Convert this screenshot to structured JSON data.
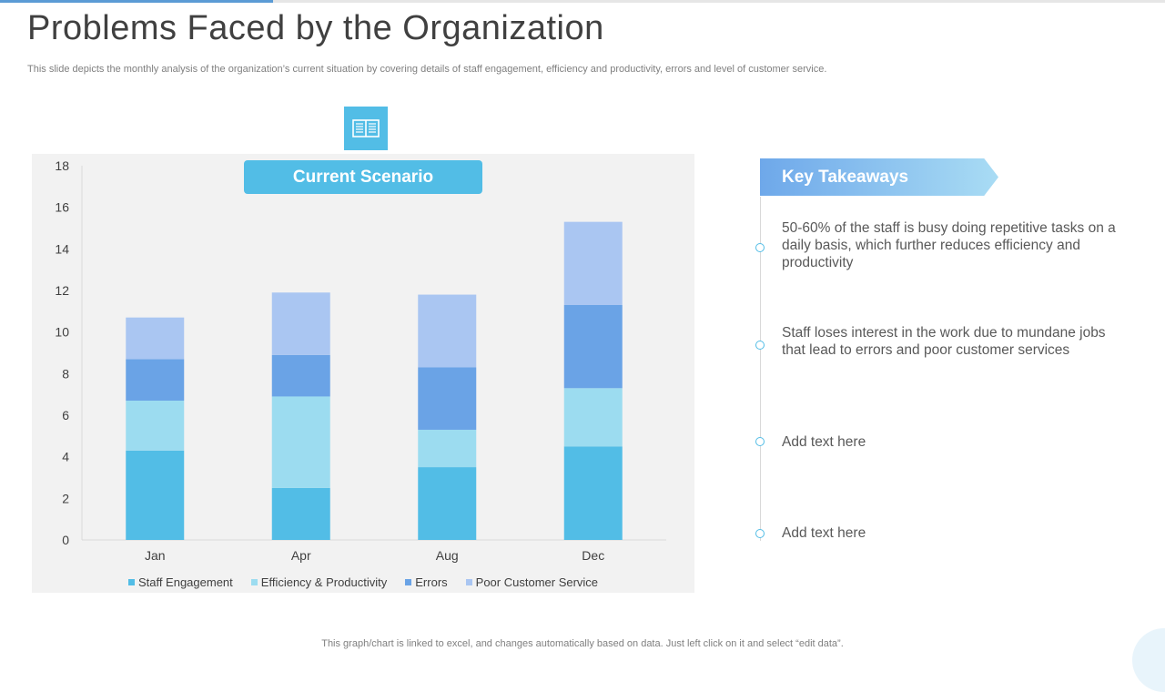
{
  "slide": {
    "title": "Problems Faced by the Organization",
    "subtitle": "This slide depicts the monthly analysis of the organization’s current situation by covering details of staff engagement, efficiency and productivity,  errors and level of customer service.",
    "footer_note": "This graph/chart is linked to excel,  and changes automatically based on data. Just left click on it and select “edit data”.",
    "icons": {
      "book": "open-book-icon"
    }
  },
  "scenario_banner": {
    "label": "Current Scenario"
  },
  "takeaways": {
    "heading": "Key Takeaways",
    "items": [
      {
        "text": "50-60% of the staff is busy  doing repetitive tasks on a daily basis, which further  reduces efficiency and productivity"
      },
      {
        "text": "Staff loses interest  in the work due to mundane jobs that lead to errors and poor customer services"
      },
      {
        "text": "Add text here"
      },
      {
        "text": "Add text here"
      }
    ]
  },
  "colors": {
    "accent": "#52bde6",
    "staff_engagement": "#52bde6",
    "efficiency": "#9cdcf0",
    "errors": "#6aa3e6",
    "poor_service": "#aac6f2"
  },
  "chart_data": {
    "type": "bar",
    "stacked": true,
    "categories": [
      "Jan",
      "Apr",
      "Aug",
      "Dec"
    ],
    "series": [
      {
        "name": "Staff Engagement",
        "values": [
          4.3,
          2.5,
          3.5,
          4.5
        ]
      },
      {
        "name": "Efficiency & Productivity",
        "values": [
          2.4,
          4.4,
          1.8,
          2.8
        ]
      },
      {
        "name": "Errors",
        "values": [
          2.0,
          2.0,
          3.0,
          4.0
        ]
      },
      {
        "name": "Poor Customer Service",
        "values": [
          2.0,
          3.0,
          3.5,
          4.0
        ]
      }
    ],
    "yticks": [
      "0",
      "2",
      "4",
      "6",
      "8",
      "10",
      "12",
      "14",
      "16",
      "18"
    ],
    "ylim": [
      0,
      18
    ],
    "title": "",
    "xlabel": "",
    "ylabel": "",
    "grid": false,
    "legend_position": "bottom"
  }
}
